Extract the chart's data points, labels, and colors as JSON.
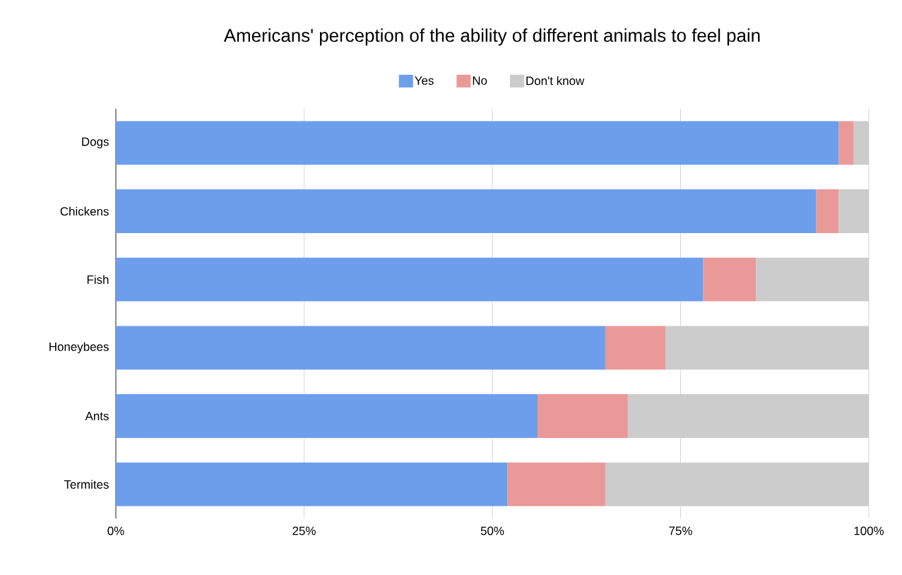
{
  "chart_data": {
    "type": "bar",
    "orientation": "horizontal",
    "stacked": true,
    "title": "Americans' perception of the ability of different animals to feel pain",
    "categories": [
      "Dogs",
      "Chickens",
      "Fish",
      "Honeybees",
      "Ants",
      "Termites"
    ],
    "series": [
      {
        "name": "Yes",
        "color": "#6d9eeb",
        "values": [
          96,
          93,
          78,
          65,
          56,
          52
        ]
      },
      {
        "name": "No",
        "color": "#ea9999",
        "values": [
          2,
          3,
          7,
          8,
          12,
          13
        ]
      },
      {
        "name": "Don't know",
        "color": "#cccccc",
        "values": [
          2,
          4,
          15,
          27,
          32,
          35
        ]
      }
    ],
    "xlim": [
      0,
      100
    ],
    "xticks": [
      {
        "value": 0,
        "label": "0%"
      },
      {
        "value": 25,
        "label": "25%"
      },
      {
        "value": 50,
        "label": "50%"
      },
      {
        "value": 75,
        "label": "75%"
      },
      {
        "value": 100,
        "label": "100%"
      }
    ],
    "grid": "x",
    "legend": "top"
  }
}
